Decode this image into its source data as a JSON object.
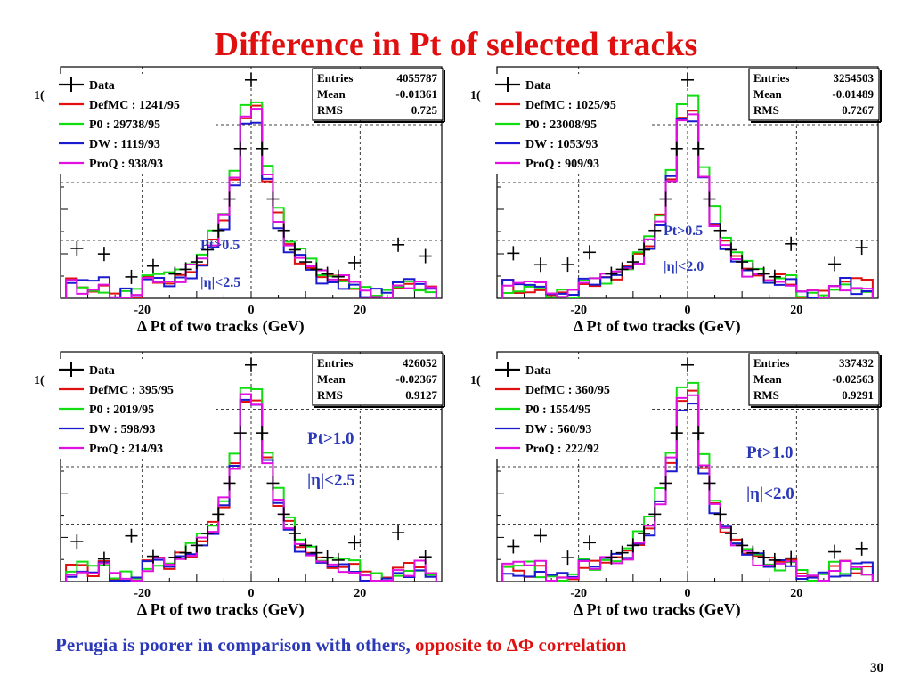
{
  "slide": {
    "title": "Difference in Pt of selected  tracks",
    "footnote_blue": "Perugia is poorer in comparison with others, ",
    "footnote_red": "opposite to ΔΦ correlation",
    "page_number": "30"
  },
  "colors": {
    "title": "#e01010",
    "text_blue": "#2b39b8",
    "Data": "#000000",
    "DefMC": "#e01010",
    "P0": "#11dd11",
    "DW": "#1a1ad0",
    "ProQ": "#e010e0"
  },
  "chart_data": [
    {
      "type": "line",
      "xlabel": "Δ Pt of two tracks (GeV)",
      "x_ticks": [
        -20,
        0,
        20
      ],
      "xlim": [
        -35,
        35
      ],
      "log_y": true,
      "grid": true,
      "legend_position": "top-left",
      "stats": {
        "entries_label": "Entries",
        "entries": "4055787",
        "mean_label": "Mean",
        "mean": "-0.01361",
        "rms_label": "RMS",
        "rms": "0.725"
      },
      "cuts": [
        "Pt>0.5",
        "|η|<2.5"
      ],
      "series": [
        {
          "name": "Data",
          "chi2": "",
          "legend": "Data"
        },
        {
          "name": "DefMC",
          "legend": "DefMC : 1241/95"
        },
        {
          "name": "P0",
          "legend": "P0 : 29738/95"
        },
        {
          "name": "DW",
          "legend": "DW : 1119/93"
        },
        {
          "name": "ProQ",
          "legend": "ProQ : 938/93"
        }
      ]
    },
    {
      "type": "line",
      "xlabel": "Δ Pt of two tracks (GeV)",
      "x_ticks": [
        -20,
        0,
        20
      ],
      "xlim": [
        -35,
        35
      ],
      "log_y": true,
      "grid": true,
      "legend_position": "top-left",
      "stats": {
        "entries_label": "Entries",
        "entries": "3254503",
        "mean_label": "Mean",
        "mean": "-0.01489",
        "rms_label": "RMS",
        "rms": "0.7267"
      },
      "cuts": [
        "Pt>0.5",
        "|η|<2.0"
      ],
      "series": [
        {
          "name": "Data",
          "legend": "Data"
        },
        {
          "name": "DefMC",
          "legend": "DefMC : 1025/95"
        },
        {
          "name": "P0",
          "legend": "P0 : 23008/95"
        },
        {
          "name": "DW",
          "legend": "DW : 1053/93"
        },
        {
          "name": "ProQ",
          "legend": "ProQ : 909/93"
        }
      ]
    },
    {
      "type": "line",
      "xlabel": "Δ Pt of two tracks (GeV)",
      "x_ticks": [
        -20,
        0,
        20
      ],
      "xlim": [
        -35,
        35
      ],
      "log_y": true,
      "grid": true,
      "legend_position": "top-left",
      "stats": {
        "entries_label": "Entries",
        "entries": "426052",
        "mean_label": "Mean",
        "mean": "-0.02367",
        "rms_label": "RMS",
        "rms": "0.9127"
      },
      "cuts": [
        "Pt>1.0",
        "|η|<2.5"
      ],
      "series": [
        {
          "name": "Data",
          "legend": "Data"
        },
        {
          "name": "DefMC",
          "legend": "DefMC : 395/95"
        },
        {
          "name": "P0",
          "legend": "P0 : 2019/95"
        },
        {
          "name": "DW",
          "legend": "DW : 598/93"
        },
        {
          "name": "ProQ",
          "legend": "ProQ : 214/93"
        }
      ]
    },
    {
      "type": "line",
      "xlabel": "Δ Pt of two tracks (GeV)",
      "x_ticks": [
        -20,
        0,
        20
      ],
      "xlim": [
        -35,
        35
      ],
      "log_y": true,
      "grid": true,
      "legend_position": "top-left",
      "stats": {
        "entries_label": "Entries",
        "entries": "337432",
        "mean_label": "Mean",
        "mean": "-0.02563",
        "rms_label": "RMS",
        "rms": "0.9291"
      },
      "cuts": [
        "Pt>1.0",
        "|η|<2.0"
      ],
      "series": [
        {
          "name": "Data",
          "legend": "Data"
        },
        {
          "name": "DefMC",
          "legend": "DefMC : 360/95"
        },
        {
          "name": "P0",
          "legend": "P0 : 1554/95"
        },
        {
          "name": "DW",
          "legend": "DW : 560/93"
        },
        {
          "name": "ProQ",
          "legend": "ProQ : 222/92"
        }
      ]
    }
  ]
}
